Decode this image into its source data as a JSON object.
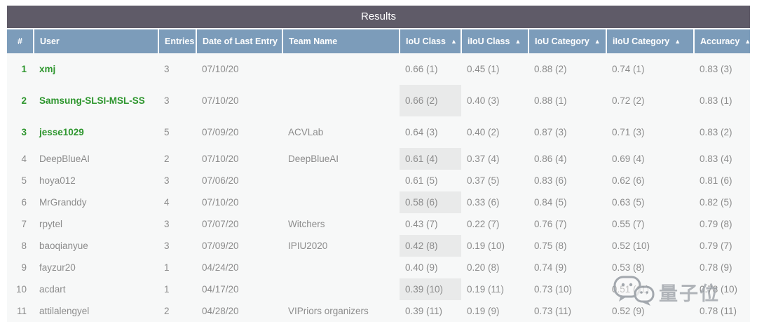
{
  "title": "Results",
  "sort_arrow": "▲",
  "columns": [
    {
      "label": "#",
      "name": "rank",
      "sortable": false
    },
    {
      "label": "User",
      "name": "user",
      "sortable": false
    },
    {
      "label": "Entries",
      "name": "entries",
      "sortable": false
    },
    {
      "label": "Date of Last Entry",
      "name": "date-of-last-entry",
      "sortable": false
    },
    {
      "label": "Team Name",
      "name": "team-name",
      "sortable": false
    },
    {
      "label": "IoU Class",
      "name": "iou-class",
      "sortable": true
    },
    {
      "label": "iIoU Class",
      "name": "iiou-class",
      "sortable": true
    },
    {
      "label": "IoU Category",
      "name": "iou-category",
      "sortable": true
    },
    {
      "label": "iIoU Category",
      "name": "iiou-category",
      "sortable": true
    },
    {
      "label": "Accuracy",
      "name": "accuracy",
      "sortable": true
    }
  ],
  "rows": [
    {
      "rank": "1",
      "user": "xmj",
      "entries": "3",
      "date": "07/10/20",
      "team": "",
      "iou_class": "0.66 (1)",
      "iiou_class": "0.45 (1)",
      "iou_category": "0.88 (2)",
      "iiou_category": "0.74 (1)",
      "accuracy": "0.83 (3)",
      "top3": true,
      "iou_class_highlight": false
    },
    {
      "rank": "2",
      "user": "Samsung-SLSI-MSL-SS",
      "entries": "3",
      "date": "07/10/20",
      "team": "",
      "iou_class": "0.66 (2)",
      "iiou_class": "0.40 (3)",
      "iou_category": "0.88 (1)",
      "iiou_category": "0.72 (2)",
      "accuracy": "0.83 (1)",
      "top3": true,
      "iou_class_highlight": true
    },
    {
      "rank": "3",
      "user": "jesse1029",
      "entries": "5",
      "date": "07/09/20",
      "team": "ACVLab",
      "iou_class": "0.64 (3)",
      "iiou_class": "0.40 (2)",
      "iou_category": "0.87 (3)",
      "iiou_category": "0.71 (3)",
      "accuracy": "0.83 (2)",
      "top3": true,
      "iou_class_highlight": false
    },
    {
      "rank": "4",
      "user": "DeepBlueAI",
      "entries": "2",
      "date": "07/10/20",
      "team": "DeepBlueAI",
      "iou_class": "0.61 (4)",
      "iiou_class": "0.37 (4)",
      "iou_category": "0.86 (4)",
      "iiou_category": "0.69 (4)",
      "accuracy": "0.83 (4)",
      "top3": false,
      "iou_class_highlight": true
    },
    {
      "rank": "5",
      "user": "hoya012",
      "entries": "3",
      "date": "07/06/20",
      "team": "",
      "iou_class": "0.61 (5)",
      "iiou_class": "0.37 (5)",
      "iou_category": "0.83 (6)",
      "iiou_category": "0.62 (6)",
      "accuracy": "0.81 (6)",
      "top3": false,
      "iou_class_highlight": false
    },
    {
      "rank": "6",
      "user": "MrGranddy",
      "entries": "4",
      "date": "07/10/20",
      "team": "",
      "iou_class": "0.58 (6)",
      "iiou_class": "0.33 (6)",
      "iou_category": "0.84 (5)",
      "iiou_category": "0.63 (5)",
      "accuracy": "0.82 (5)",
      "top3": false,
      "iou_class_highlight": true
    },
    {
      "rank": "7",
      "user": "rpytel",
      "entries": "3",
      "date": "07/07/20",
      "team": "Witchers",
      "iou_class": "0.43 (7)",
      "iiou_class": "0.22 (7)",
      "iou_category": "0.76 (7)",
      "iiou_category": "0.55 (7)",
      "accuracy": "0.79 (8)",
      "top3": false,
      "iou_class_highlight": false
    },
    {
      "rank": "8",
      "user": "baoqianyue",
      "entries": "3",
      "date": "07/09/20",
      "team": "IPIU2020",
      "iou_class": "0.42 (8)",
      "iiou_class": "0.19 (10)",
      "iou_category": "0.75 (8)",
      "iiou_category": "0.52 (10)",
      "accuracy": "0.79 (7)",
      "top3": false,
      "iou_class_highlight": true
    },
    {
      "rank": "9",
      "user": "fayzur20",
      "entries": "1",
      "date": "04/24/20",
      "team": "",
      "iou_class": "0.40 (9)",
      "iiou_class": "0.20 (8)",
      "iou_category": "0.74 (9)",
      "iiou_category": "0.53 (8)",
      "accuracy": "0.78 (9)",
      "top3": false,
      "iou_class_highlight": false
    },
    {
      "rank": "10",
      "user": "acdart",
      "entries": "1",
      "date": "04/17/20",
      "team": "",
      "iou_class": "0.39 (10)",
      "iiou_class": "0.19 (11)",
      "iou_category": "0.73 (10)",
      "iiou_category": "0.51 (11)",
      "accuracy": "0.78 (10)",
      "top3": false,
      "iou_class_highlight": true
    },
    {
      "rank": "11",
      "user": "attilalengyel",
      "entries": "2",
      "date": "04/28/20",
      "team": "VIPriors organizers",
      "iou_class": "0.39 (11)",
      "iiou_class": "0.19 (9)",
      "iou_category": "0.73 (11)",
      "iiou_category": "0.52 (9)",
      "accuracy": "0.78 (11)",
      "top3": false,
      "iou_class_highlight": false
    }
  ],
  "watermark": {
    "text": "量子位",
    "icon": "wechat-icon"
  },
  "colors": {
    "title_bar": "#5f5b68",
    "header": "#7c9cba",
    "row_bg": "#f7f8f8",
    "highlight_cell": "#e9eaea",
    "top3_green": "#2e962e",
    "text_gray": "#8c8c8c"
  }
}
